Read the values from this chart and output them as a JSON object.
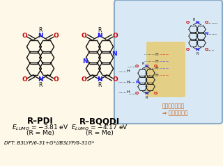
{
  "bg_color": "#fdf8e8",
  "panel_bg": "#d8e8f5",
  "panel_border_color": "#8aaac8",
  "highlight_color": "#e8c96a",
  "highlight_alpha": 0.8,
  "molecule1_name": "R–PDI",
  "molecule2_name": "R–BQQDI",
  "rme": "(R = Me)",
  "dft_note": "DFT: B3LYP/6-31+G*//B3LYP/6-31G*",
  "arrow_label1": "窒素元素の導入",
  "arrow_label2": "⇒ 多点相互作用",
  "N_color": "#1a1aff",
  "O_color": "#cc0000",
  "bond_color": "#111111",
  "bond_lw": 1.0
}
